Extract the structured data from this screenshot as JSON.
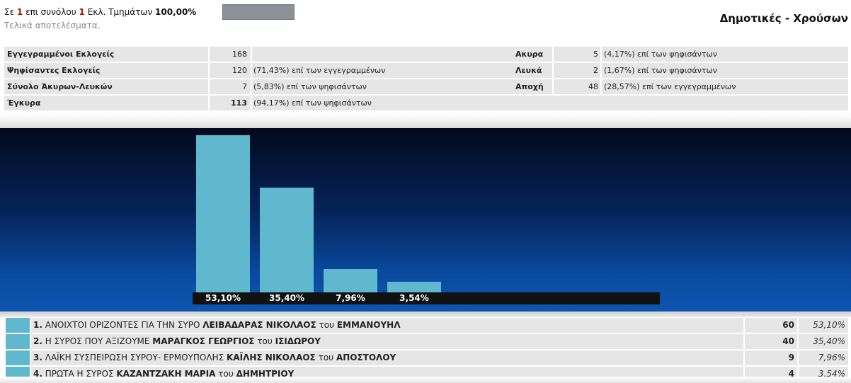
{
  "header": {
    "progress_prefix": "Σε",
    "counted": "1",
    "progress_middle": "επι συνόλου",
    "total": "1",
    "progress_suffix": "Εκλ. Τμημάτων",
    "percent": "100,00%",
    "progress_fraction": 1.0,
    "final_note": "Τελικά αποτελέσματα.",
    "election_title": "Δημοτικές - Χρούσων"
  },
  "stats": {
    "left": [
      {
        "label": "Εγγεγραμμένοι Εκλογείς",
        "value": "168",
        "pct": ""
      },
      {
        "label": "Ψηφίσαντες Εκλογείς",
        "value": "120",
        "pct": "(71,43%) επί των εγγεγραμμένων"
      },
      {
        "label": "Σύνολο Άκυρων-Λευκών",
        "value": "7",
        "pct": "(5,83%) επί των ψηφισάντων"
      },
      {
        "label": "Έγκυρα",
        "value": "113",
        "pct": "(94,17%) επί των ψηφισάντων"
      }
    ],
    "right": [
      {
        "label": "Ακυρα",
        "value": "5",
        "pct": "(4,17%) επί των ψηφισάντων"
      },
      {
        "label": "Λευκά",
        "value": "2",
        "pct": "(1,67%) επί των ψηφισάντων"
      },
      {
        "label": "Αποχή",
        "value": "48",
        "pct": "(28,57%) επί των εγγεγραμμένων"
      }
    ]
  },
  "chart_data": {
    "type": "bar",
    "categories": [
      "1",
      "2",
      "3",
      "4"
    ],
    "values": [
      53.1,
      35.4,
      7.96,
      3.54
    ],
    "value_labels": [
      "53,10%",
      "35,40%",
      "7,96%",
      "3,54%"
    ],
    "ylim": [
      0,
      60
    ],
    "colors": {
      "bar": "#5fb8cd"
    },
    "grid": false
  },
  "candidates": [
    {
      "rank": "1.",
      "party": "ΑΝΟΙΧΤΟΙ ΟΡΙΖΟΝΤΕΣ ΓΙΑ ΤΗΝ ΣΥΡΟ",
      "person": "ΛΕΙΒΑΔΑΡΑΣ ΝΙΚΟΛΑΟΣ",
      "father_prefix": "του",
      "father": "ΕΜΜΑΝΟΥΗΛ",
      "votes": "60",
      "pct": "53,10%"
    },
    {
      "rank": "2.",
      "party": "Η ΣΥΡΟΣ ΠΟΥ ΑΞΙΖΟΥΜΕ",
      "person": "ΜΑΡΑΓΚΟΣ ΓΕΩΡΓΙΟΣ",
      "father_prefix": "του",
      "father": "ΙΣΙΔΩΡΟΥ",
      "votes": "40",
      "pct": "35,40%"
    },
    {
      "rank": "3.",
      "party": "ΛΑΪΚΗ ΣΥΣΠΕΙΡΩΣΗ ΣΥΡΟΥ- ΕΡΜΟΥΠΟΛΗΣ",
      "person": "ΚΑΪΛΗΣ ΝΙΚΟΛΑΟΣ",
      "father_prefix": "του",
      "father": "ΑΠΟΣΤΟΛΟΥ",
      "votes": "9",
      "pct": "7,96%"
    },
    {
      "rank": "4.",
      "party": "ΠΡΩΤΑ Η ΣΥΡΟΣ",
      "person": "ΚΑΖΑΝΤΖΑΚΗ ΜΑΡΙΑ",
      "father_prefix": "του",
      "father": "ΔΗΜΗΤΡΙΟΥ",
      "votes": "4",
      "pct": "3,54%"
    }
  ]
}
